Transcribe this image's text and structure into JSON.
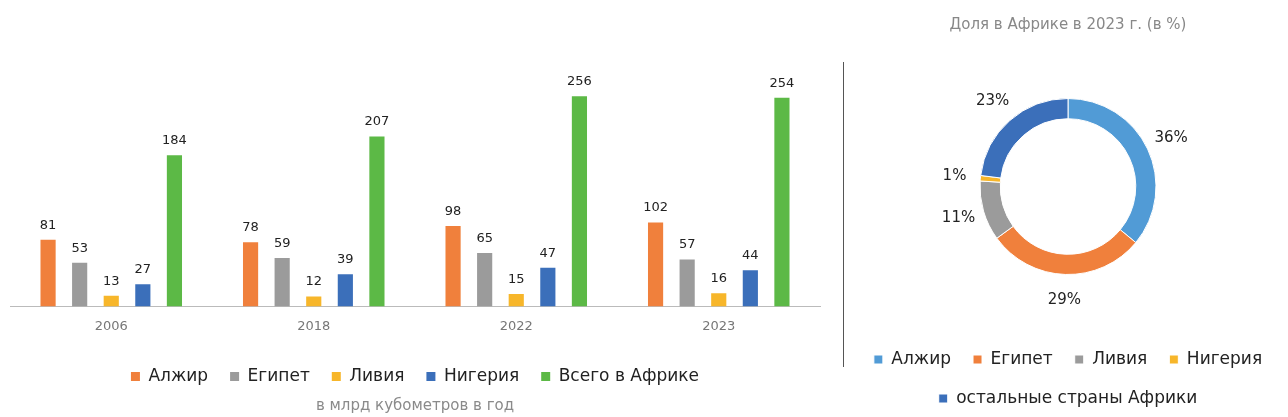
{
  "chart_data": [
    {
      "type": "bar",
      "categories": [
        "2006",
        "2018",
        "2022",
        "2023"
      ],
      "series": [
        {
          "name": "Алжир",
          "color": "#f0803c",
          "values": [
            81,
            78,
            98,
            102
          ]
        },
        {
          "name": "Египет",
          "color": "#9b9b9b",
          "values": [
            53,
            59,
            65,
            57
          ]
        },
        {
          "name": "Ливия",
          "color": "#f7b62a",
          "values": [
            13,
            12,
            15,
            16
          ]
        },
        {
          "name": "Нигерия",
          "color": "#3b6fba",
          "values": [
            27,
            39,
            47,
            44
          ]
        },
        {
          "name": "Всего в Африке",
          "color": "#5cb946",
          "values": [
            184,
            207,
            256,
            254
          ]
        }
      ],
      "data_labels": true,
      "legend": "bottom",
      "grid": false,
      "annotations": [
        "в млрд кубометров в год"
      ]
    },
    {
      "type": "donut",
      "title": "Доля в Африке в 2023 г. (в %)",
      "categories": [
        "Алжир",
        "Египет",
        "Ливия",
        "Нигерия",
        "остальные страны Африки"
      ],
      "values": [
        36,
        29,
        11,
        1,
        23
      ],
      "colors": [
        "#519bd6",
        "#f0803c",
        "#9b9b9b",
        "#f7b62a",
        "#3b6fba"
      ],
      "value_labels": [
        "36%",
        "29%",
        "11%",
        "1%",
        "23%"
      ],
      "legend": "bottom"
    }
  ]
}
